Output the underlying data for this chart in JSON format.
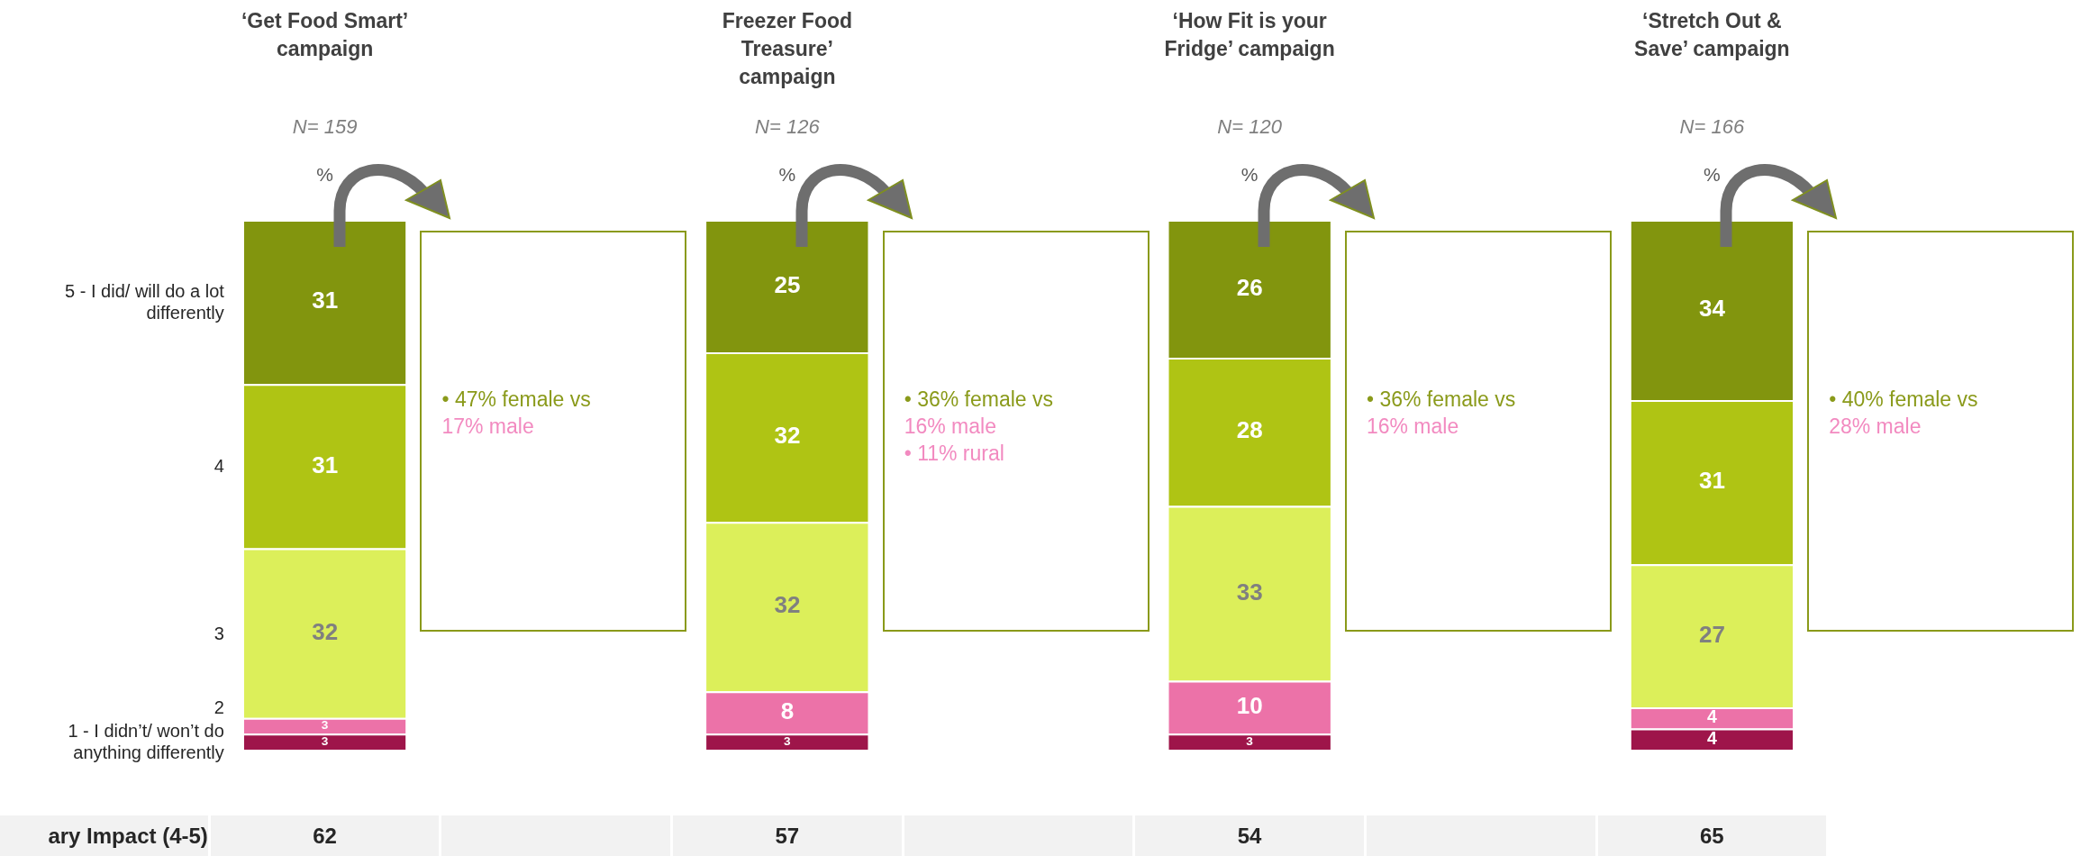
{
  "chart_data": {
    "type": "bar",
    "stacked": true,
    "data_labels": true,
    "ylabel": "%",
    "categories": [
      "‘Get Food Smart’ campaign",
      "Freezer Food Treasure’ campaign",
      "‘How Fit is your Fridge’ campaign",
      "‘Stretch Out & Save’ campaign"
    ],
    "series": [
      {
        "name": "1 - I didn’t/ won’t do anything differently",
        "color": "#9e154a",
        "values": [
          3,
          3,
          3,
          4
        ]
      },
      {
        "name": "2",
        "color": "#ec72a8",
        "values": [
          3,
          8,
          10,
          4
        ]
      },
      {
        "name": "3",
        "color": "#dcef5a",
        "values": [
          32,
          32,
          33,
          27
        ]
      },
      {
        "name": "4",
        "color": "#afc414",
        "values": [
          31,
          32,
          28,
          31
        ]
      },
      {
        "name": "5 - I did/ will do a lot differently",
        "color": "#82950e",
        "values": [
          31,
          25,
          26,
          34
        ]
      }
    ],
    "annotations": [
      "ary Impact (4-5)",
      "N= 159",
      "N= 126",
      "N= 120",
      "N= 166",
      "• 47% female vs 17% male",
      "• 36% female vs 16% male\n• 11% rural",
      "• 36% female vs 16% male",
      "• 40% female vs 28% male",
      "62",
      "57",
      "54",
      "65"
    ]
  }
}
